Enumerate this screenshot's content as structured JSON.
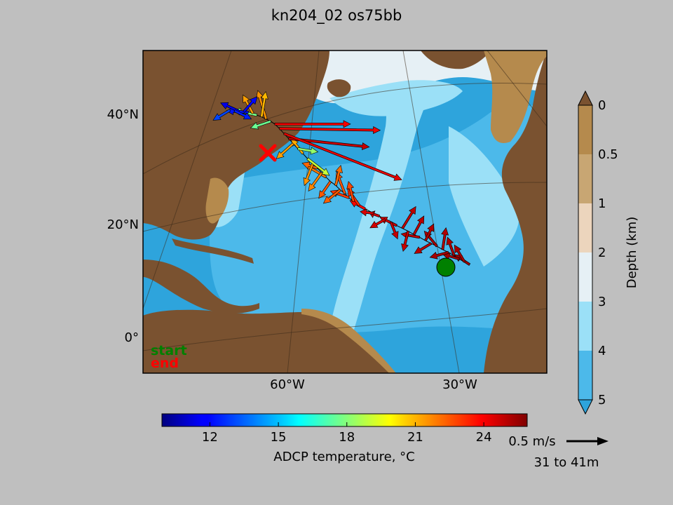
{
  "title": "kn204_02 os75bb",
  "map": {
    "lat_labels": [
      "40°N",
      "20°N",
      "0°"
    ],
    "lon_labels": [
      "60°W",
      "30°W"
    ],
    "legend_start": "start",
    "legend_end": "end",
    "colors": {
      "land": "#7a5230",
      "shelf": "#b58a4d",
      "ocean_shallow": "#e6f0f5",
      "ocean_mid": "#9be0f7",
      "ocean_deep": "#4cb9ea",
      "ocean_abyss": "#2ea4dc",
      "start_marker": "#008000",
      "end_marker": "#ff0000"
    },
    "start_marker_icon": "green-circle",
    "end_marker_icon": "red-x"
  },
  "depth_colorbar": {
    "label": "Depth (km)",
    "ticks": [
      "0",
      "0.5",
      "1",
      "2",
      "3",
      "4",
      "5"
    ],
    "colors": [
      "#b58a4d",
      "#c8a673",
      "#ecd5bd",
      "#e6f0f5",
      "#9be0f7",
      "#4cb9ea"
    ]
  },
  "temp_colorbar": {
    "label": "ADCP temperature, °C",
    "ticks": [
      "12",
      "15",
      "18",
      "21",
      "24"
    ],
    "range": [
      9.9,
      25.9
    ]
  },
  "quiver_key": {
    "speed_label": "0.5 m/s",
    "depth_label": "31 to 41m"
  },
  "chart_data": {
    "type": "quiver",
    "title": "kn204_02 os75bb",
    "xlabel": "",
    "ylabel": "",
    "ticks_lat": [
      40,
      20,
      0
    ],
    "ticks_lon": [
      -60,
      -30
    ],
    "colorbar_temperature_range": [
      9.9,
      25.9
    ],
    "colorbar_depth_km": [
      0,
      0.5,
      1,
      2,
      3,
      4,
      5
    ],
    "track_start": {
      "lon": -27.5,
      "lat": 13.0
    },
    "track_end": {
      "lon": -70.5,
      "lat": 41.0
    },
    "vectors": [
      {
        "lon": -28.3,
        "lat": 13.3,
        "u": -0.18,
        "v": 0.12,
        "temp": 25.5
      },
      {
        "lon": -29.2,
        "lat": 13.8,
        "u": -0.12,
        "v": 0.2,
        "temp": 25.3
      },
      {
        "lon": -30.1,
        "lat": 14.3,
        "u": -0.2,
        "v": 0.06,
        "temp": 25.4
      },
      {
        "lon": -31.0,
        "lat": 14.9,
        "u": -0.08,
        "v": 0.22,
        "temp": 25.2
      },
      {
        "lon": -32.0,
        "lat": 15.5,
        "u": -0.22,
        "v": -0.06,
        "temp": 25.3
      },
      {
        "lon": -33.0,
        "lat": 16.0,
        "u": 0.04,
        "v": 0.26,
        "temp": 25.1
      },
      {
        "lon": -34.0,
        "lat": 16.6,
        "u": -0.15,
        "v": 0.18,
        "temp": 25.2
      },
      {
        "lon": -35.0,
        "lat": 17.1,
        "u": -0.2,
        "v": -0.12,
        "temp": 25.0
      },
      {
        "lon": -36.0,
        "lat": 17.6,
        "u": 0.1,
        "v": 0.2,
        "temp": 25.1
      },
      {
        "lon": -37.0,
        "lat": 18.2,
        "u": -0.22,
        "v": 0.04,
        "temp": 24.9
      },
      {
        "lon": -38.0,
        "lat": 18.7,
        "u": 0.12,
        "v": 0.22,
        "temp": 25.0
      },
      {
        "lon": -39.0,
        "lat": 19.3,
        "u": -0.06,
        "v": -0.24,
        "temp": 24.8
      },
      {
        "lon": -40.0,
        "lat": 19.8,
        "u": 0.16,
        "v": 0.26,
        "temp": 24.9
      },
      {
        "lon": -41.0,
        "lat": 20.3,
        "u": -0.2,
        "v": 0.1,
        "temp": 24.7
      },
      {
        "lon": -42.0,
        "lat": 20.9,
        "u": 0.08,
        "v": -0.2,
        "temp": 24.8
      },
      {
        "lon": -43.0,
        "lat": 21.4,
        "u": -0.18,
        "v": -0.1,
        "temp": 24.6
      },
      {
        "lon": -44.0,
        "lat": 22.0,
        "u": -0.12,
        "v": 0.04,
        "temp": 24.7
      },
      {
        "lon": -45.0,
        "lat": 22.5,
        "u": -0.16,
        "v": 0.02,
        "temp": 24.5
      },
      {
        "lon": -46.5,
        "lat": 23.3,
        "u": -0.18,
        "v": 0.1,
        "temp": 23.8
      },
      {
        "lon": -47.5,
        "lat": 23.9,
        "u": -0.14,
        "v": 0.2,
        "temp": 23.2
      },
      {
        "lon": -48.5,
        "lat": 24.6,
        "u": -0.06,
        "v": 0.24,
        "temp": 22.8
      },
      {
        "lon": -49.3,
        "lat": 25.3,
        "u": -0.22,
        "v": 0.08,
        "temp": 23.0
      },
      {
        "lon": -50.0,
        "lat": 26.0,
        "u": -0.1,
        "v": 0.26,
        "temp": 22.6
      },
      {
        "lon": -50.8,
        "lat": 26.7,
        "u": -0.2,
        "v": -0.16,
        "temp": 22.4
      },
      {
        "lon": -51.6,
        "lat": 27.5,
        "u": 0.06,
        "v": 0.24,
        "temp": 22.2
      },
      {
        "lon": -52.5,
        "lat": 28.2,
        "u": -0.14,
        "v": -0.2,
        "temp": 22.5
      },
      {
        "lon": -53.3,
        "lat": 29.0,
        "u": -0.24,
        "v": 0.14,
        "temp": 22.0
      },
      {
        "lon": -54.0,
        "lat": 29.8,
        "u": -0.16,
        "v": -0.22,
        "temp": 21.8
      },
      {
        "lon": -54.8,
        "lat": 30.6,
        "u": -0.18,
        "v": 0.06,
        "temp": 22.3
      },
      {
        "lon": -55.6,
        "lat": 31.4,
        "u": -0.1,
        "v": -0.26,
        "temp": 21.6
      },
      {
        "lon": -56.5,
        "lat": 32.3,
        "u": 0.26,
        "v": -0.2,
        "temp": 19.0
      },
      {
        "lon": -57.3,
        "lat": 33.2,
        "u": -0.14,
        "v": 0.18,
        "temp": 21.2
      },
      {
        "lon": -58.2,
        "lat": 34.1,
        "u": 0.24,
        "v": -0.04,
        "temp": 18.2
      },
      {
        "lon": -59.0,
        "lat": 35.0,
        "u": -0.2,
        "v": -0.18,
        "temp": 21.4
      },
      {
        "lon": -59.8,
        "lat": 35.9,
        "u": 0.96,
        "v": -0.1,
        "temp": 24.8
      },
      {
        "lon": -60.6,
        "lat": 36.8,
        "u": 1.4,
        "v": -0.55,
        "temp": 24.3
      },
      {
        "lon": -61.4,
        "lat": 37.7,
        "u": 1.2,
        "v": -0.02,
        "temp": 24.1
      },
      {
        "lon": -62.2,
        "lat": 38.5,
        "u": 0.9,
        "v": 0.0,
        "temp": 24.0
      },
      {
        "lon": -62.9,
        "lat": 39.0,
        "u": -0.24,
        "v": -0.08,
        "temp": 17.6
      },
      {
        "lon": -63.7,
        "lat": 39.4,
        "u": -0.1,
        "v": 0.34,
        "temp": 21.6
      },
      {
        "lon": -64.5,
        "lat": 39.8,
        "u": 0.05,
        "v": 0.3,
        "temp": 21.0
      },
      {
        "lon": -65.3,
        "lat": 40.1,
        "u": -0.28,
        "v": 0.06,
        "temp": 17.8
      },
      {
        "lon": -66.0,
        "lat": 40.4,
        "u": -0.12,
        "v": 0.22,
        "temp": 21.4
      },
      {
        "lon": -66.8,
        "lat": 40.6,
        "u": -0.26,
        "v": 0.02,
        "temp": 12.2
      },
      {
        "lon": -67.6,
        "lat": 40.7,
        "u": 0.16,
        "v": 0.18,
        "temp": 12.0
      },
      {
        "lon": -68.4,
        "lat": 40.8,
        "u": -0.22,
        "v": 0.1,
        "temp": 11.6
      },
      {
        "lon": -69.2,
        "lat": 40.9,
        "u": 0.2,
        "v": -0.1,
        "temp": 12.4
      },
      {
        "lon": -70.0,
        "lat": 41.0,
        "u": -0.2,
        "v": -0.12,
        "temp": 13.0
      }
    ]
  }
}
